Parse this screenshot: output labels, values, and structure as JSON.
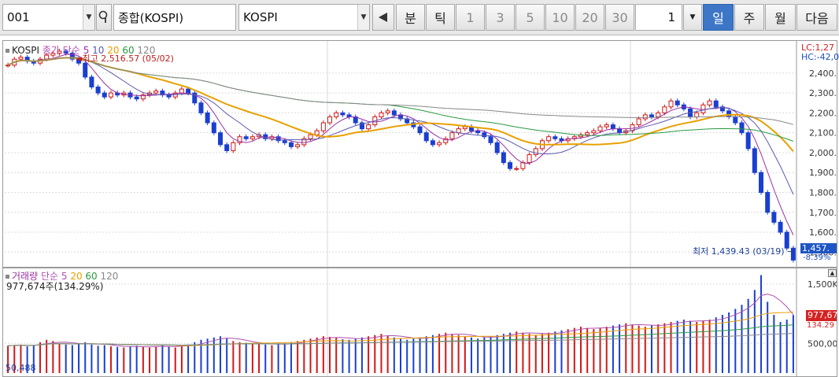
{
  "toolbar": {
    "code": "001",
    "index_name": "종합(KOSPI)",
    "market": "KOSPI",
    "count": "1",
    "buttons": [
      {
        "label": "분",
        "state": "normal"
      },
      {
        "label": "틱",
        "state": "normal"
      },
      {
        "label": "1",
        "state": "dim"
      },
      {
        "label": "3",
        "state": "dim"
      },
      {
        "label": "5",
        "state": "dim"
      },
      {
        "label": "10",
        "state": "dim"
      },
      {
        "label": "20",
        "state": "dim"
      },
      {
        "label": "30",
        "state": "dim"
      }
    ],
    "periods": [
      {
        "label": "일",
        "state": "on"
      },
      {
        "label": "주",
        "state": "normal"
      },
      {
        "label": "월",
        "state": "normal"
      },
      {
        "label": "다음",
        "state": "normal"
      }
    ]
  },
  "price_panel": {
    "title": "KOSPI",
    "legend": [
      {
        "label": "종가 단순",
        "color": "#b050b0"
      },
      {
        "label": "5",
        "color": "#9a2fa6"
      },
      {
        "label": "10",
        "color": "#5a5ab0"
      },
      {
        "label": "20",
        "color": "#e8a000"
      },
      {
        "label": "60",
        "color": "#2a9a40"
      },
      {
        "label": "120",
        "color": "#888888"
      }
    ],
    "high_note": "최고 2,516.57 (05/02)",
    "low_note": "최저 1,439.43 (03/19)",
    "lc": "LC:1,27",
    "hc": "HC:-42,0",
    "current": "1,457.",
    "change": "-8.39%"
  },
  "volume_panel": {
    "title": "거래량",
    "legend": [
      {
        "label": "단순",
        "color": "#b050b0"
      },
      {
        "label": "5",
        "color": "#b050b0"
      },
      {
        "label": "20",
        "color": "#e8a000"
      },
      {
        "label": "60",
        "color": "#2a9a40"
      },
      {
        "label": "120",
        "color": "#888888"
      }
    ],
    "info": "977,674주(134.29%)",
    "current": "977,67",
    "ratio": "134.29",
    "bottom_value": "50,488"
  },
  "chart_data": {
    "type": "line",
    "price_axis": {
      "ticks": [
        "2,400.00",
        "2,300.00",
        "2,200.00",
        "2,100.00",
        "2,000.00",
        "1,900.00",
        "1,800.00",
        "1,700.00",
        "1,600.00",
        "1,500.00"
      ],
      "ylim": [
        1430,
        2530
      ]
    },
    "volume_axis": {
      "ticks": [
        "1,500K",
        "500,000"
      ]
    },
    "high": {
      "value": 2516.57,
      "date": "05/02"
    },
    "low": {
      "value": 1439.43,
      "date": "03/19"
    },
    "close": [
      2440,
      2470,
      2480,
      2460,
      2450,
      2470,
      2490,
      2500,
      2510,
      2500,
      2470,
      2450,
      2380,
      2330,
      2300,
      2280,
      2300,
      2290,
      2300,
      2280,
      2270,
      2290,
      2300,
      2310,
      2290,
      2280,
      2300,
      2320,
      2300,
      2250,
      2200,
      2150,
      2100,
      2040,
      2010,
      2050,
      2080,
      2070,
      2080,
      2090,
      2070,
      2080,
      2060,
      2050,
      2030,
      2040,
      2070,
      2090,
      2110,
      2150,
      2180,
      2200,
      2190,
      2180,
      2150,
      2120,
      2140,
      2180,
      2200,
      2210,
      2190,
      2170,
      2150,
      2130,
      2100,
      2060,
      2040,
      2050,
      2070,
      2100,
      2120,
      2130,
      2110,
      2100,
      2080,
      2050,
      2000,
      1950,
      1920,
      1920,
      1950,
      1990,
      2020,
      2060,
      2080,
      2070,
      2060,
      2070,
      2080,
      2090,
      2100,
      2110,
      2130,
      2140,
      2120,
      2100,
      2110,
      2140,
      2170,
      2190,
      2180,
      2200,
      2230,
      2260,
      2240,
      2220,
      2180,
      2200,
      2240,
      2260,
      2230,
      2210,
      2180,
      2150,
      2100,
      2020,
      1900,
      1800,
      1700,
      1650,
      1600,
      1520,
      1460
    ],
    "volume_k": [
      460,
      470,
      480,
      450,
      470,
      520,
      560,
      540,
      500,
      480,
      470,
      500,
      520,
      480,
      460,
      470,
      450,
      440,
      430,
      450,
      460,
      440,
      430,
      450,
      470,
      450,
      430,
      460,
      480,
      520,
      560,
      580,
      600,
      620,
      580,
      540,
      520,
      510,
      500,
      490,
      480,
      470,
      490,
      500,
      520,
      540,
      560,
      580,
      600,
      620,
      610,
      590,
      570,
      560,
      580,
      600,
      620,
      640,
      660,
      630,
      600,
      580,
      560,
      580,
      600,
      620,
      640,
      660,
      680,
      660,
      640,
      620,
      600,
      580,
      600,
      620,
      640,
      660,
      680,
      700,
      680,
      660,
      640,
      660,
      680,
      700,
      720,
      740,
      760,
      780,
      760,
      740,
      760,
      780,
      800,
      820,
      840,
      820,
      800,
      780,
      800,
      820,
      840,
      860,
      880,
      900,
      880,
      860,
      880,
      900,
      940,
      980,
      1020,
      1080,
      1150,
      1250,
      1400,
      1650,
      1200,
      980,
      860,
      900,
      978
    ]
  }
}
